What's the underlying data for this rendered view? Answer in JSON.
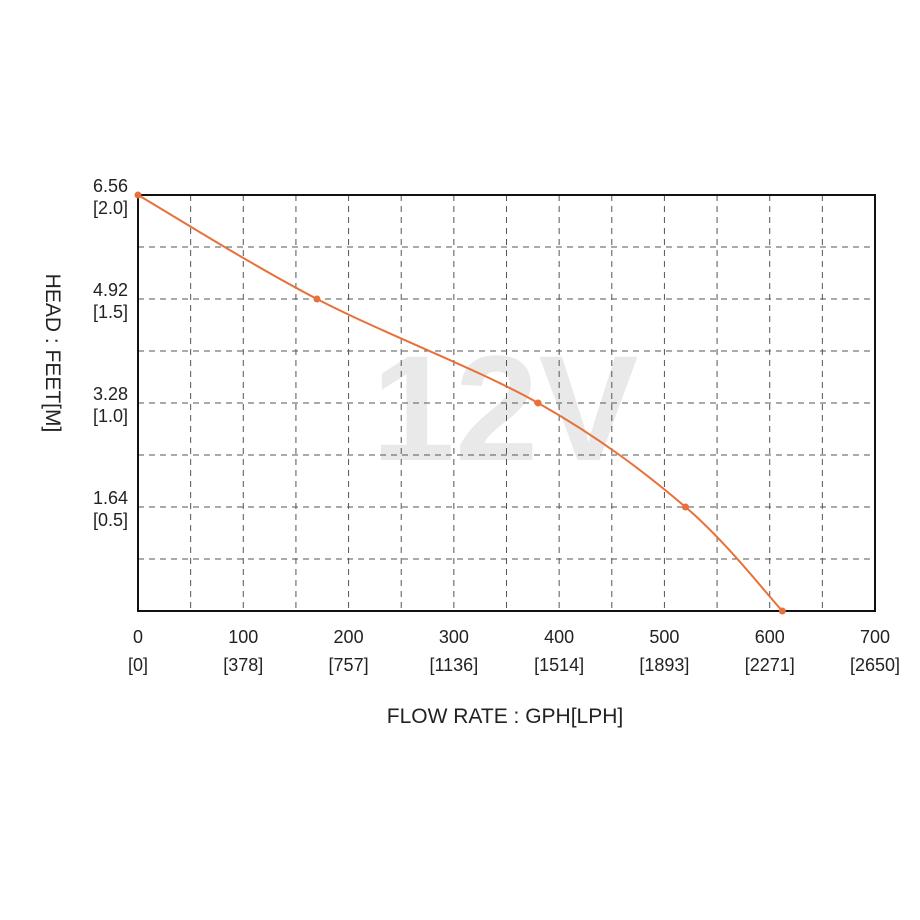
{
  "chart_data": {
    "type": "line",
    "title": "",
    "watermark": "12V",
    "xlabel": "FLOW RATE : GPH[LPH]",
    "ylabel": "HEAD : FEET[M]",
    "xlim": [
      0,
      700
    ],
    "ylim": [
      0,
      6.56
    ],
    "grid": true,
    "x_ticks": [
      {
        "value": 0,
        "label": "0",
        "sublabel": "[0]"
      },
      {
        "value": 100,
        "label": "100",
        "sublabel": "[378]"
      },
      {
        "value": 200,
        "label": "200",
        "sublabel": "[757]"
      },
      {
        "value": 300,
        "label": "300",
        "sublabel": "[1136]"
      },
      {
        "value": 400,
        "label": "400",
        "sublabel": "[1514]"
      },
      {
        "value": 500,
        "label": "500",
        "sublabel": "[1893]"
      },
      {
        "value": 600,
        "label": "600",
        "sublabel": "[2271]"
      },
      {
        "value": 700,
        "label": "700",
        "sublabel": "[2650]"
      }
    ],
    "y_ticks": [
      {
        "value": 1.64,
        "label": "1.64",
        "sublabel": "[0.5]"
      },
      {
        "value": 3.28,
        "label": "3.28",
        "sublabel": "[1.0]"
      },
      {
        "value": 4.92,
        "label": "4.92",
        "sublabel": "[1.5]"
      },
      {
        "value": 6.56,
        "label": "6.56",
        "sublabel": "[2.0]"
      }
    ],
    "series": [
      {
        "color": "#e8703a",
        "points": [
          {
            "x": 0,
            "y": 6.56
          },
          {
            "x": 170,
            "y": 4.92
          },
          {
            "x": 380,
            "y": 3.28
          },
          {
            "x": 520,
            "y": 1.64
          },
          {
            "x": 612,
            "y": 0
          }
        ]
      }
    ]
  }
}
